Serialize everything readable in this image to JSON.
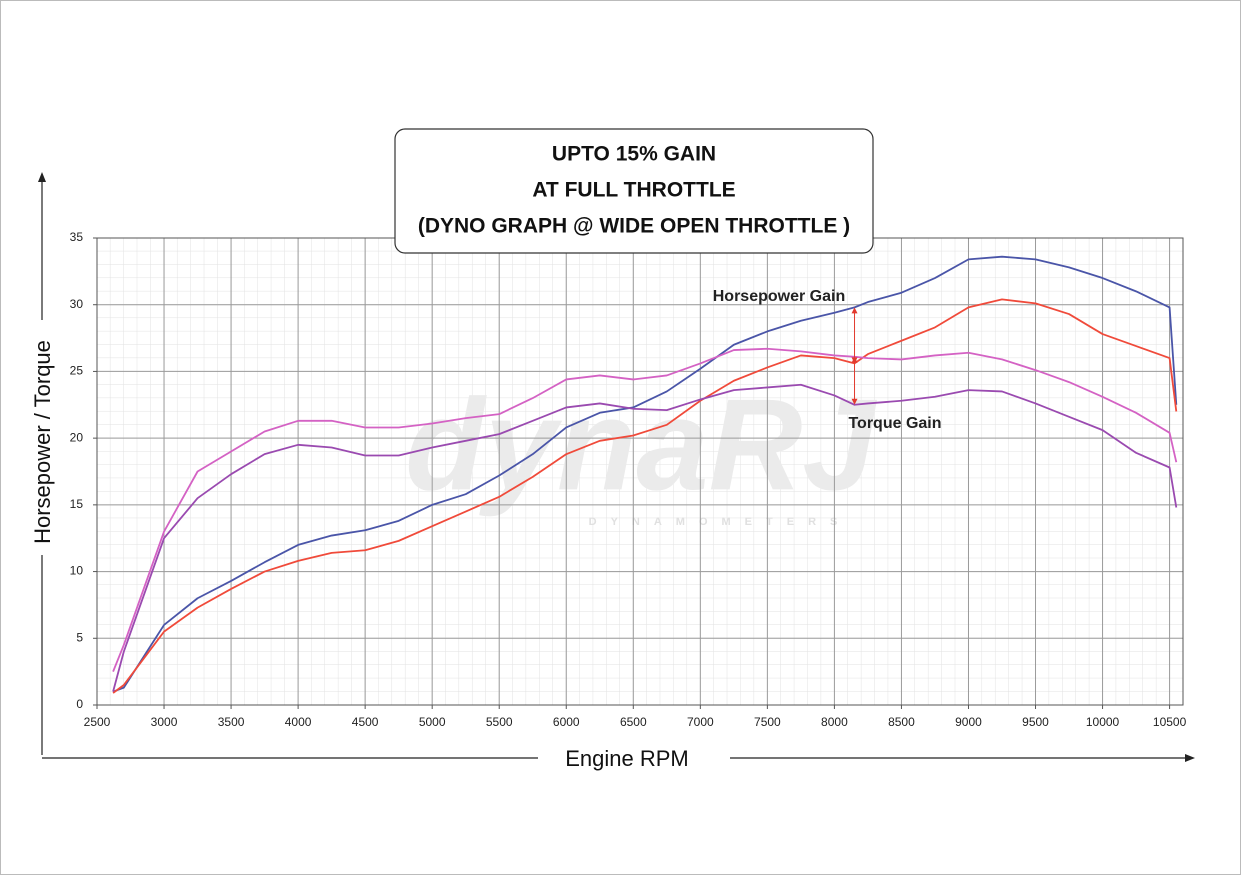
{
  "chart_data": {
    "type": "line",
    "title": [
      "UPTO 15% GAIN",
      "AT FULL THROTTLE",
      "(DYNO GRAPH @ WIDE OPEN THROTTLE )"
    ],
    "x_label": "Engine RPM",
    "y_label": "Horsepower / Torque",
    "annotations": [
      "Horsepower Gain",
      "Torque Gain"
    ],
    "watermark": {
      "logo": "dynaRJ",
      "tagline": "DYNAMOMETERS"
    },
    "x": [
      2620,
      2700,
      3000,
      3250,
      3500,
      3750,
      4000,
      4250,
      4500,
      4750,
      5000,
      5250,
      5500,
      5750,
      6000,
      6250,
      6500,
      6750,
      7000,
      7250,
      7500,
      7750,
      8000,
      8150,
      8250,
      8500,
      8750,
      9000,
      9250,
      9500,
      9750,
      10000,
      10250,
      10500,
      10550
    ],
    "series": [
      {
        "color": "#4a55a8",
        "values": [
          1,
          1.3,
          6,
          8,
          9.3,
          10.7,
          12,
          12.7,
          13.1,
          13.8,
          15,
          15.8,
          17.2,
          18.8,
          20.8,
          21.9,
          22.3,
          23.5,
          25.2,
          27,
          28,
          28.8,
          29.4,
          29.8,
          30.2,
          30.9,
          32,
          33.4,
          33.6,
          33.4,
          32.8,
          32,
          31,
          29.8,
          22.5
        ]
      },
      {
        "color": "#f04a3a",
        "values": [
          0.9,
          1.5,
          5.5,
          7.3,
          8.7,
          10,
          10.8,
          11.4,
          11.6,
          12.3,
          13.4,
          14.5,
          15.6,
          17.1,
          18.8,
          19.8,
          20.2,
          21,
          22.8,
          24.3,
          25.3,
          26.2,
          26,
          25.6,
          26.3,
          27.3,
          28.3,
          29.8,
          30.4,
          30.1,
          29.3,
          27.8,
          26.9,
          26,
          22
        ]
      },
      {
        "color": "#d462c4",
        "values": [
          2.5,
          4.5,
          13,
          17.5,
          19,
          20.5,
          21.3,
          21.3,
          20.8,
          20.8,
          21.1,
          21.5,
          21.8,
          23,
          24.4,
          24.7,
          24.4,
          24.7,
          25.6,
          26.6,
          26.7,
          26.5,
          26.2,
          26.1,
          26,
          25.9,
          26.2,
          26.4,
          25.9,
          25.1,
          24.2,
          23.1,
          21.9,
          20.4,
          18.2
        ]
      },
      {
        "color": "#9a4ab0",
        "values": [
          1,
          4,
          12.5,
          15.5,
          17.3,
          18.8,
          19.5,
          19.3,
          18.7,
          18.7,
          19.3,
          19.8,
          20.3,
          21.3,
          22.3,
          22.6,
          22.2,
          22.1,
          22.9,
          23.6,
          23.8,
          24,
          23.2,
          22.5,
          22.6,
          22.8,
          23.1,
          23.6,
          23.5,
          22.6,
          21.6,
          20.6,
          18.9,
          17.8,
          14.8
        ]
      }
    ],
    "xlim": [
      2500,
      10600
    ],
    "ylim": [
      0,
      35
    ],
    "xticks": [
      2500,
      3000,
      3500,
      4000,
      4500,
      5000,
      5500,
      6000,
      6500,
      7000,
      7500,
      8000,
      8500,
      9000,
      9500,
      10000,
      10500
    ],
    "yticks": [
      0,
      5,
      10,
      15,
      20,
      25,
      30,
      35
    ],
    "grid": true
  }
}
